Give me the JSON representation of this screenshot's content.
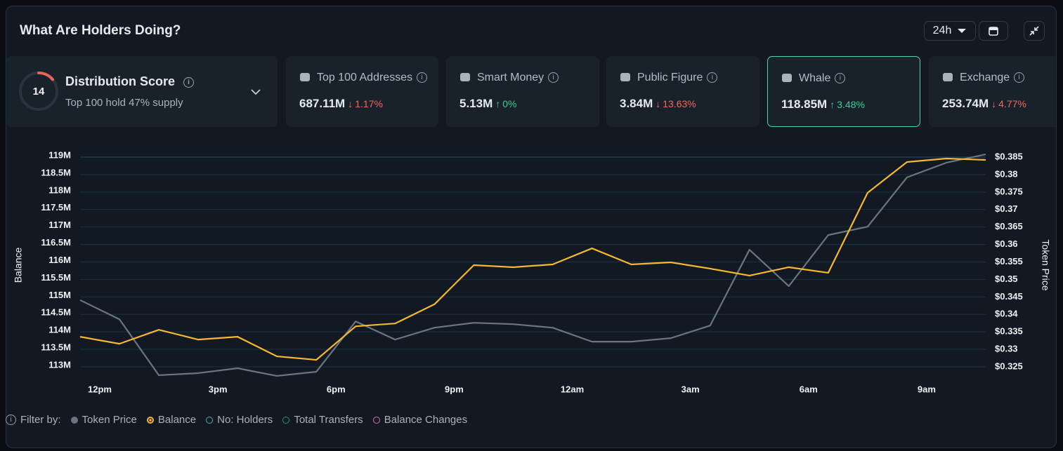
{
  "header": {
    "title": "What Are Holders Doing?",
    "range": "24h"
  },
  "summary": {
    "title": "Distribution Score",
    "score": 14,
    "score_max": 100,
    "subtitle": "Top 100 hold 47% supply"
  },
  "cards": [
    {
      "title": "Top 100 Addresses",
      "value": "687.11M",
      "change": "1.17%",
      "direction": "down"
    },
    {
      "title": "Smart Money",
      "value": "5.13M",
      "change": "0%",
      "direction": "up"
    },
    {
      "title": "Public Figure",
      "value": "3.84M",
      "change": "13.63%",
      "direction": "down"
    },
    {
      "title": "Whale",
      "value": "118.85M",
      "change": "3.48%",
      "direction": "up",
      "selected": true
    },
    {
      "title": "Exchange",
      "value": "253.74M",
      "change": "4.77%",
      "direction": "down"
    }
  ],
  "chart_data": {
    "type": "line",
    "y_label": "Balance",
    "y2_label": "Token Price",
    "x": [
      -0.5,
      0.5,
      1.5,
      2.5,
      3.5,
      4.5,
      5.5,
      6.5,
      7.5,
      8.5,
      9.5,
      10.5,
      11.5,
      12.5,
      13.5,
      14.5,
      15.5,
      16.5,
      17.5,
      18.5,
      19.5,
      20.5,
      21.5,
      22.5
    ],
    "xlim": [
      -0.5,
      22.5
    ],
    "xticks": [
      {
        "value": 0,
        "label": "12pm"
      },
      {
        "value": 3,
        "label": "3pm"
      },
      {
        "value": 6,
        "label": "6pm"
      },
      {
        "value": 9,
        "label": "9pm"
      },
      {
        "value": 12,
        "label": "12am"
      },
      {
        "value": 15,
        "label": "3am"
      },
      {
        "value": 18,
        "label": "6am"
      },
      {
        "value": 21,
        "label": "9am"
      }
    ],
    "ylim": [
      113000000,
      119000000
    ],
    "yticks": [
      {
        "value": 113000000,
        "label": "113M"
      },
      {
        "value": 113500000,
        "label": "113.5M"
      },
      {
        "value": 114000000,
        "label": "114M"
      },
      {
        "value": 114500000,
        "label": "114.5M"
      },
      {
        "value": 115000000,
        "label": "115M"
      },
      {
        "value": 115500000,
        "label": "115.5M"
      },
      {
        "value": 116000000,
        "label": "116M"
      },
      {
        "value": 116500000,
        "label": "116.5M"
      },
      {
        "value": 117000000,
        "label": "117M"
      },
      {
        "value": 117500000,
        "label": "117.5M"
      },
      {
        "value": 118000000,
        "label": "118M"
      },
      {
        "value": 118500000,
        "label": "118.5M"
      },
      {
        "value": 119000000,
        "label": "119M"
      }
    ],
    "y2lim": [
      0.325,
      0.385
    ],
    "y2ticks": [
      {
        "value": 0.325,
        "label": "$0.325"
      },
      {
        "value": 0.33,
        "label": "$0.33"
      },
      {
        "value": 0.335,
        "label": "$0.335"
      },
      {
        "value": 0.34,
        "label": "$0.34"
      },
      {
        "value": 0.345,
        "label": "$0.345"
      },
      {
        "value": 0.35,
        "label": "$0.35"
      },
      {
        "value": 0.355,
        "label": "$0.355"
      },
      {
        "value": 0.36,
        "label": "$0.36"
      },
      {
        "value": 0.365,
        "label": "$0.365"
      },
      {
        "value": 0.37,
        "label": "$0.37"
      },
      {
        "value": 0.375,
        "label": "$0.375"
      },
      {
        "value": 0.38,
        "label": "$0.38"
      },
      {
        "value": 0.385,
        "label": "$0.385"
      }
    ],
    "grid": true,
    "series": [
      {
        "name": "Token Price",
        "color": "#6b7580",
        "axis": "y2",
        "values": [
          0.3441,
          0.3386,
          0.3226,
          0.3232,
          0.3246,
          0.3224,
          0.3236,
          0.338,
          0.3328,
          0.3362,
          0.3376,
          0.3372,
          0.3362,
          0.3322,
          0.3322,
          0.3332,
          0.3368,
          0.3585,
          0.3481,
          0.3627,
          0.3651,
          0.3792,
          0.3834,
          0.3858
        ]
      },
      {
        "name": "Balance",
        "color": "#f5b82e",
        "values": [
          113860000,
          113660000,
          114060000,
          113780000,
          113860000,
          113300000,
          113200000,
          114160000,
          114240000,
          114790000,
          115910000,
          115850000,
          115930000,
          116390000,
          115930000,
          115990000,
          115810000,
          115610000,
          115850000,
          115690000,
          117980000,
          118860000,
          118960000,
          118920000
        ]
      }
    ]
  },
  "filter": {
    "label": "Filter by:",
    "inactive": [
      {
        "name": "No: Holders",
        "color": "#3fb9a0"
      },
      {
        "name": "Total Transfers",
        "color": "#2a8f78"
      },
      {
        "name": "Balance Changes",
        "color": "#e46aa8"
      }
    ]
  }
}
